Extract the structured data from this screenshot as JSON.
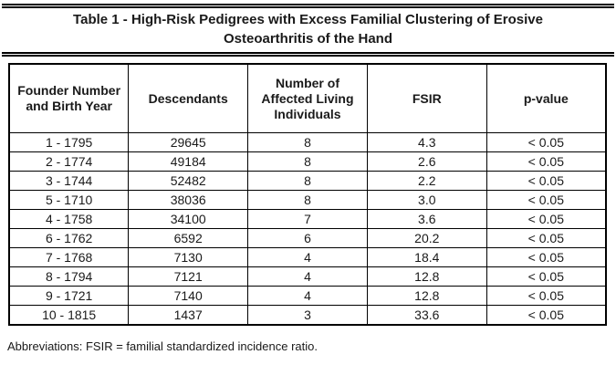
{
  "title": "Table 1 - High-Risk Pedigrees with Excess Familial Clustering of Erosive Osteoarthritis of the Hand",
  "table": {
    "headers": [
      "Founder Number and Birth Year",
      "Descendants",
      "Number of Affected Living Individuals",
      "FSIR",
      "p-value"
    ],
    "rows": [
      [
        "1 - 1795",
        "29645",
        "8",
        "4.3",
        "< 0.05"
      ],
      [
        "2 - 1774",
        "49184",
        "8",
        "2.6",
        "< 0.05"
      ],
      [
        "3 - 1744",
        "52482",
        "8",
        "2.2",
        "< 0.05"
      ],
      [
        "5 - 1710",
        "38036",
        "8",
        "3.0",
        "< 0.05"
      ],
      [
        "4 - 1758",
        "34100",
        "7",
        "3.6",
        "< 0.05"
      ],
      [
        "6 - 1762",
        "6592",
        "6",
        "20.2",
        "< 0.05"
      ],
      [
        "7 - 1768",
        "7130",
        "4",
        "18.4",
        "< 0.05"
      ],
      [
        "8 - 1794",
        "7121",
        "4",
        "12.8",
        "< 0.05"
      ],
      [
        "9 - 1721",
        "7140",
        "4",
        "12.8",
        "< 0.05"
      ],
      [
        "10 - 1815",
        "1437",
        "3",
        "33.6",
        "< 0.05"
      ]
    ]
  },
  "footnote": "Abbreviations: FSIR = familial standardized incidence ratio.",
  "colors": {
    "text": "#1a1a1a",
    "border": "#000000",
    "background": "#ffffff"
  }
}
